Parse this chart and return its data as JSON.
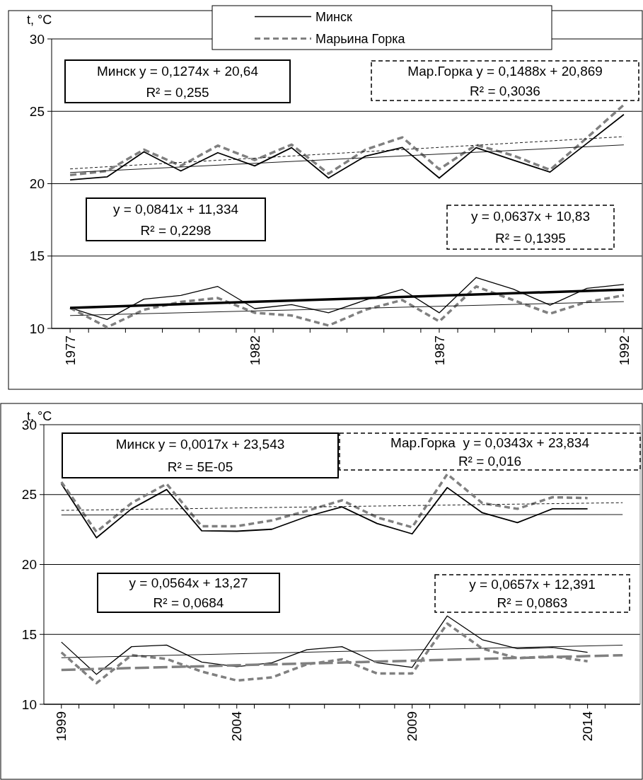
{
  "chart_data": [
    {
      "type": "line",
      "ylabel": "t, °C",
      "xlim": [
        1976.5,
        1992.5
      ],
      "xticks": [
        1977,
        {
          "value": 1977.5,
          "label": null
        },
        {
          "value": 1978.5,
          "label": null
        },
        {
          "value": 1979.5,
          "label": null
        },
        {
          "value": 1980.5,
          "label": null
        },
        {
          "value": 1981.5,
          "label": null
        },
        1982,
        {
          "value": 1982.5,
          "label": null
        },
        {
          "value": 1983.5,
          "label": null
        },
        {
          "value": 1984.5,
          "label": null
        },
        {
          "value": 1985.5,
          "label": null
        },
        {
          "value": 1986.5,
          "label": null
        },
        1987,
        {
          "value": 1987.5,
          "label": null
        },
        {
          "value": 1988.5,
          "label": null
        },
        {
          "value": 1989.5,
          "label": null
        },
        {
          "value": 1990.5,
          "label": null
        },
        {
          "value": 1991.5,
          "label": null
        },
        1992
      ],
      "ylim": [
        10,
        30
      ],
      "yticks": [
        10,
        15,
        20,
        25,
        30
      ],
      "grid": "y",
      "legend": "top",
      "x": [
        1977,
        1978,
        1979,
        1980,
        1981,
        1982,
        1983,
        1984,
        1985,
        1986,
        1987,
        1988,
        1989,
        1990,
        1991,
        1992
      ],
      "series": [
        {
          "name": "Минск",
          "color": "#000000",
          "line_style": "solid",
          "values": [
            20.26,
            20.47,
            22.2,
            20.88,
            22.14,
            21.23,
            22.49,
            20.39,
            21.9,
            22.5,
            20.39,
            22.49,
            21.63,
            20.8,
            22.78,
            24.78
          ]
        },
        {
          "name": "Марьина Горка",
          "color": "#808080",
          "line_style": "dashed",
          "values": [
            20.6,
            20.88,
            22.35,
            21.23,
            22.63,
            21.63,
            22.7,
            20.69,
            22.35,
            23.2,
            21.0,
            22.68,
            21.95,
            20.95,
            23.17,
            25.45
          ]
        },
        {
          "color": "#000000",
          "line_style": "solid",
          "values": [
            11.42,
            10.62,
            12.02,
            12.28,
            12.9,
            11.37,
            11.64,
            11.08,
            11.96,
            12.69,
            11.08,
            13.52,
            12.72,
            11.61,
            12.77,
            13.04
          ]
        },
        {
          "color": "#808080",
          "line_style": "dashed",
          "values": [
            11.42,
            10.08,
            11.29,
            11.83,
            12.1,
            11.08,
            10.89,
            10.2,
            11.29,
            11.96,
            10.48,
            12.9,
            11.96,
            11.02,
            11.83,
            12.28
          ]
        },
        {
          "type": "line",
          "color": "#000000",
          "line_style": "solid",
          "x": [
            1977,
            1992
          ],
          "values": [
            20.77,
            22.68
          ]
        },
        {
          "type": "line",
          "color": "#000000",
          "line_style": "dashed",
          "x": [
            1977,
            1992
          ],
          "values": [
            21.02,
            23.25
          ]
        },
        {
          "type": "line",
          "color": "#000000",
          "line_style": "solid",
          "x": [
            1977,
            1992
          ],
          "values": [
            11.42,
            12.68
          ]
        },
        {
          "type": "line",
          "color": "#000000",
          "line_style": "solid",
          "x": [
            1977,
            1992
          ],
          "values": [
            10.89,
            11.85
          ]
        }
      ],
      "annotations": [
        "Минск y = 0,1274x + 20,64\nR² = 0,255",
        "Мар.Горка y = 0,1488x + 20,869\nR² = 0,3036",
        "y = 0,0841x + 11,334\nR² = 0,2298",
        "y = 0,0637x + 10,83\nR² = 0,1395"
      ]
    },
    {
      "type": "line",
      "ylabel": "t, °C",
      "xlim": [
        1998.5,
        2015.5
      ],
      "xticks": [
        1999,
        {
          "value": 1999.5,
          "label": null
        },
        {
          "value": 2000.5,
          "label": null
        },
        {
          "value": 2001.5,
          "label": null
        },
        {
          "value": 2002.5,
          "label": null
        },
        {
          "value": 2003.5,
          "label": null
        },
        2004,
        {
          "value": 2004.5,
          "label": null
        },
        {
          "value": 2005.5,
          "label": null
        },
        {
          "value": 2006.5,
          "label": null
        },
        {
          "value": 2007.5,
          "label": null
        },
        {
          "value": 2008.5,
          "label": null
        },
        2009,
        {
          "value": 2009.5,
          "label": null
        },
        {
          "value": 2010.5,
          "label": null
        },
        {
          "value": 2011.5,
          "label": null
        },
        {
          "value": 2012.5,
          "label": null
        },
        {
          "value": 2013.5,
          "label": null
        },
        2014,
        {
          "value": 2014.5,
          "label": null
        }
      ],
      "ylim": [
        10,
        30
      ],
      "yticks": [
        10,
        15,
        20,
        25,
        30
      ],
      "grid": "y",
      "x": [
        1999,
        2000,
        2001,
        2002,
        2003,
        2004,
        2005,
        2006,
        2007,
        2008,
        2009,
        2010,
        2011,
        2012,
        2013,
        2014
      ],
      "series": [
        {
          "color": "#000000",
          "line_style": "solid",
          "values": [
            25.77,
            21.91,
            23.98,
            25.36,
            22.41,
            22.38,
            22.52,
            23.43,
            24.12,
            22.93,
            22.19,
            25.5,
            23.7,
            22.99,
            23.98,
            23.98
          ]
        },
        {
          "color": "#808080",
          "line_style": "dashed",
          "values": [
            25.9,
            22.33,
            24.39,
            25.77,
            22.74,
            22.74,
            23.15,
            23.84,
            24.59,
            23.37,
            22.66,
            26.46,
            24.39,
            23.98,
            24.81,
            24.75
          ]
        },
        {
          "color": "#000000",
          "line_style": "solid",
          "values": [
            14.45,
            12.14,
            14.12,
            14.23,
            13.02,
            12.69,
            12.97,
            13.9,
            14.12,
            12.97,
            12.64,
            16.32,
            14.62,
            13.98,
            14.07,
            13.71
          ]
        },
        {
          "color": "#808080",
          "line_style": "dashed",
          "values": [
            13.71,
            11.51,
            13.52,
            13.24,
            12.34,
            11.7,
            11.92,
            12.86,
            13.21,
            12.2,
            12.2,
            15.77,
            13.98,
            13.3,
            13.43,
            13.08
          ]
        },
        {
          "type": "line",
          "color": "#000000",
          "line_style": "solid",
          "x": [
            1999,
            2015
          ],
          "values": [
            23.54,
            23.57
          ]
        },
        {
          "type": "line",
          "color": "#000000",
          "line_style": "dashed",
          "x": [
            1999,
            2015
          ],
          "values": [
            23.87,
            24.42
          ]
        },
        {
          "type": "line",
          "color": "#000000",
          "line_style": "solid",
          "x": [
            1999,
            2015
          ],
          "values": [
            13.33,
            14.23
          ]
        },
        {
          "type": "line",
          "color": "#808080",
          "line_style": "dashed",
          "x": [
            1999,
            2015
          ],
          "values": [
            12.46,
            13.51
          ]
        }
      ],
      "annotations": [
        "Минск y = 0,0017x + 23,543\nR² = 5E-05",
        "Мар.Горка  y = 0,0343x + 23,834\nR² = 0,016",
        "y = 0,0564x + 13,27\nR² = 0,0684",
        "y = 0,0657x + 12,391\nR² = 0,0863"
      ]
    }
  ]
}
